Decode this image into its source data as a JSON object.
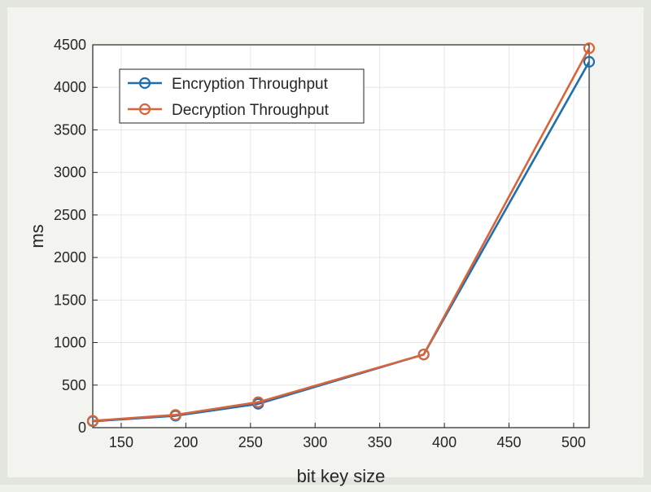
{
  "chart_data": {
    "type": "line",
    "xlabel": "bit key size",
    "ylabel": "ms",
    "xlim": [
      128,
      512
    ],
    "ylim": [
      0,
      4500
    ],
    "xticks": [
      150,
      200,
      250,
      300,
      350,
      400,
      450,
      500
    ],
    "yticks": [
      0,
      500,
      1000,
      1500,
      2000,
      2500,
      3000,
      3500,
      4000,
      4500
    ],
    "grid": true,
    "legend_position": "top-left",
    "x": [
      128,
      192,
      256,
      384,
      512
    ],
    "series": [
      {
        "name": "Encryption Throughput",
        "color": "#1f6fae",
        "values": [
          75,
          140,
          280,
          860,
          4300
        ]
      },
      {
        "name": "Decryption Throughput",
        "color": "#d9643a",
        "values": [
          80,
          150,
          300,
          860,
          4460
        ]
      }
    ]
  }
}
